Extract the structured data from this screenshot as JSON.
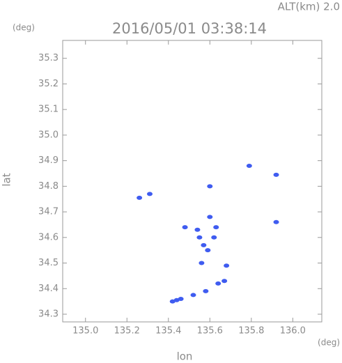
{
  "chart_data": {
    "type": "scatter",
    "title": "2016/05/01 03:38:14",
    "subtitle": "ALT(km) 2.0",
    "y_unit": "(deg)",
    "x_unit": "(deg)",
    "x_label": "lon",
    "y_label": "lat",
    "xlim": [
      134.89,
      136.14
    ],
    "ylim": [
      34.27,
      35.37
    ],
    "xticks": [
      {
        "value": 135,
        "label": "135.0"
      },
      135.2,
      135.4,
      135.6,
      135.8,
      {
        "value": 136,
        "label": "136.0"
      }
    ],
    "yticks": [
      34.3,
      34.4,
      34.5,
      34.6,
      34.7,
      34.8,
      34.9,
      {
        "value": 35,
        "label": "35.0"
      },
      35.1,
      35.2,
      35.3
    ],
    "series": [
      {
        "color": "#3f5cf0",
        "x": [
          135.26,
          135.31,
          135.79,
          135.92,
          135.6,
          135.92,
          135.48,
          135.54,
          135.6,
          135.57,
          135.59,
          135.55,
          135.62,
          135.63,
          135.56,
          135.68,
          135.67,
          135.64,
          135.58,
          135.52,
          135.46,
          135.42,
          135.44
        ],
        "values": [
          34.755,
          34.77,
          34.88,
          34.845,
          34.8,
          34.66,
          34.64,
          34.63,
          34.68,
          34.57,
          34.55,
          34.6,
          34.6,
          34.64,
          34.5,
          34.49,
          34.43,
          34.42,
          34.39,
          34.375,
          34.36,
          34.35,
          34.355
        ]
      }
    ]
  }
}
